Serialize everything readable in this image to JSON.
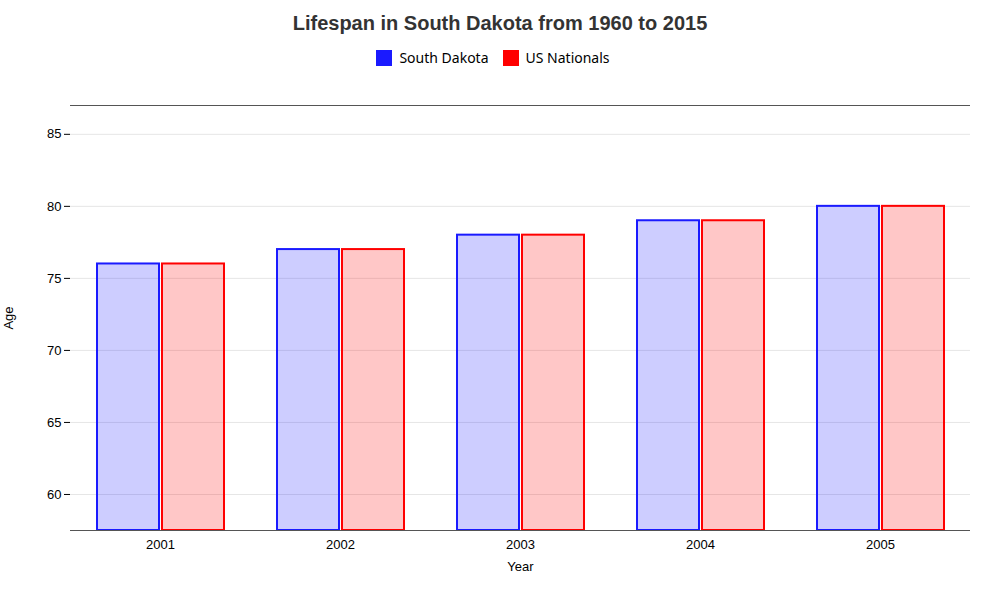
{
  "chart_data": {
    "type": "bar",
    "title": "Lifespan in South Dakota from 1960 to 2015",
    "xlabel": "Year",
    "ylabel": "Age",
    "categories": [
      2001,
      2002,
      2003,
      2004,
      2005
    ],
    "series": [
      {
        "name": "South Dakota",
        "color": "#1a1aff",
        "values": [
          76.0,
          77.0,
          78.0,
          79.0,
          80.0
        ]
      },
      {
        "name": "US Nationals",
        "color": "#ff0000",
        "values": [
          76.0,
          77.0,
          78.0,
          79.0,
          80.0
        ]
      }
    ],
    "ylim": [
      57.5,
      87
    ],
    "yticks": [
      60,
      65,
      70,
      75,
      80,
      85
    ],
    "grid": true,
    "legend": "top"
  }
}
